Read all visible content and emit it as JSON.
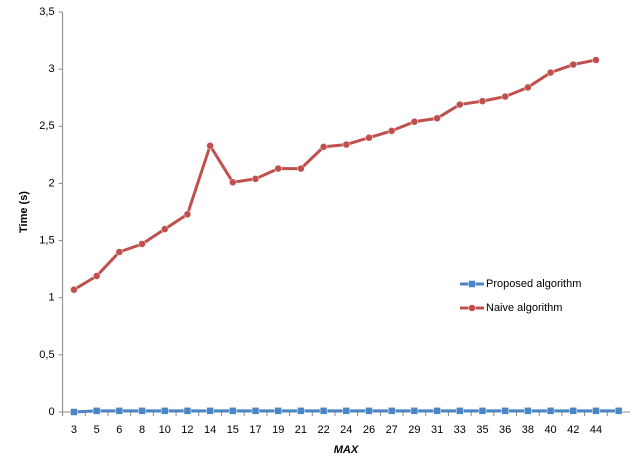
{
  "chart_data": {
    "type": "line",
    "x_label": "MAX",
    "y_label": "Time  (s)",
    "categories": [
      "3",
      "5",
      "6",
      "8",
      "10",
      "12",
      "14",
      "15",
      "17",
      "19",
      "21",
      "22",
      "24",
      "26",
      "27",
      "29",
      "31",
      "33",
      "35",
      "36",
      "38",
      "40",
      "42",
      "44",
      null
    ],
    "series": [
      {
        "name": "Proposed algorithm",
        "color": "#4a86c5",
        "marker": "square",
        "values": [
          0,
          0.01,
          0.01,
          0.01,
          0.01,
          0.01,
          0.01,
          0.01,
          0.01,
          0.01,
          0.01,
          0.01,
          0.01,
          0.01,
          0.01,
          0.01,
          0.01,
          0.01,
          0.01,
          0.01,
          0.01,
          0.01,
          0.01,
          0.01,
          0.01
        ]
      },
      {
        "name": "Naive algorithm",
        "color": "#c0504d",
        "marker": "circle",
        "values": [
          1.07,
          1.19,
          1.4,
          1.47,
          1.6,
          1.73,
          2.33,
          2.01,
          2.04,
          2.13,
          2.13,
          2.32,
          2.34,
          2.4,
          2.46,
          2.54,
          2.57,
          2.69,
          2.72,
          2.76,
          2.84,
          2.97,
          3.04,
          3.08,
          null
        ]
      }
    ],
    "ylim": [
      0,
      3.5
    ],
    "yticks": [
      0,
      {
        "value": 0.5,
        "label": "0,5"
      },
      1,
      {
        "value": 1.5,
        "label": "1,5"
      },
      2,
      {
        "value": 2.5,
        "label": "2,5"
      },
      3,
      {
        "value": 3.5,
        "label": "3,5"
      }
    ]
  }
}
